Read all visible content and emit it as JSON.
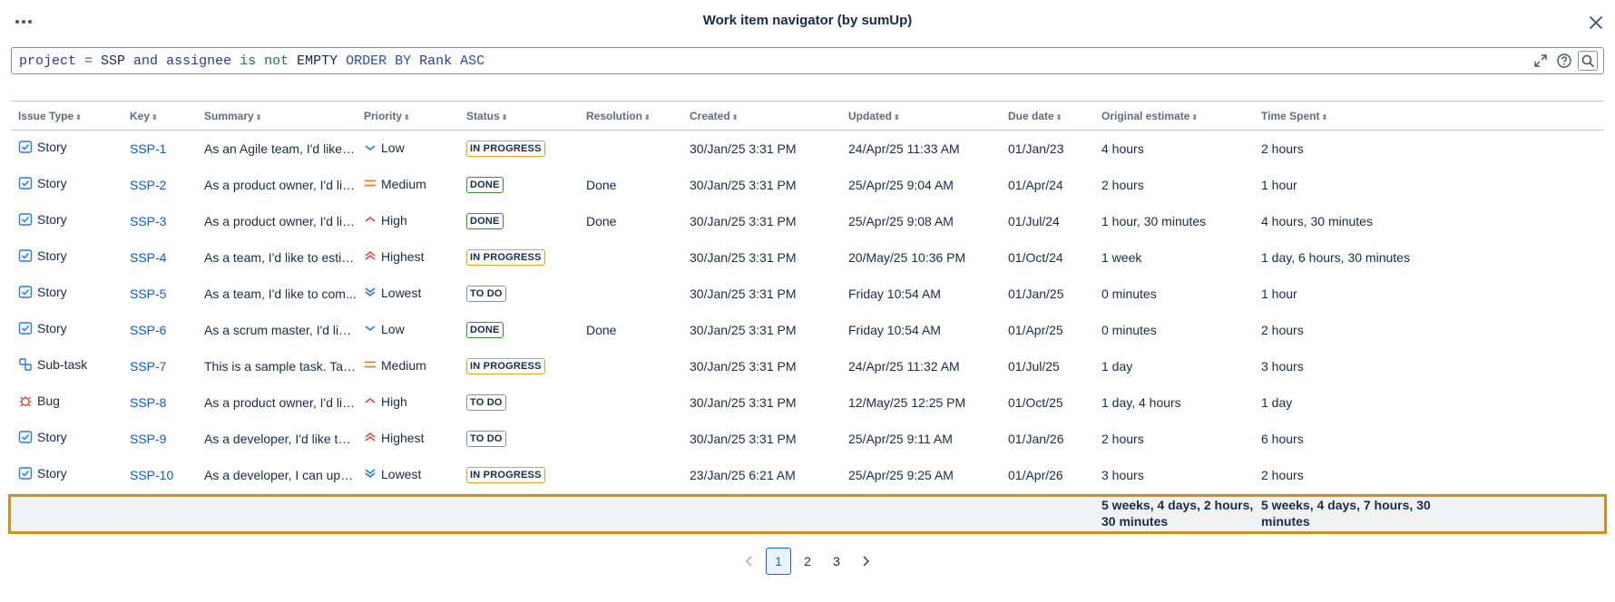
{
  "dialog": {
    "title": "Work item navigator (by sumUp)"
  },
  "query": {
    "tokens": [
      {
        "t": "project",
        "c": "q-kw"
      },
      {
        "t": " = ",
        "c": "q-op"
      },
      {
        "t": "SSP",
        "c": "q-ent"
      },
      {
        "t": " and ",
        "c": "q-kw"
      },
      {
        "t": "assignee",
        "c": "q-kw"
      },
      {
        "t": " is not ",
        "c": "q-op"
      },
      {
        "t": "EMPTY",
        "c": "q-ent"
      },
      {
        "t": " ORDER BY ",
        "c": "q-key"
      },
      {
        "t": "Rank",
        "c": "q-kw"
      },
      {
        "t": " ASC",
        "c": "q-key"
      }
    ]
  },
  "table": {
    "columns": [
      "Issue Type",
      "Key",
      "Summary",
      "Priority",
      "Status",
      "Resolution",
      "Created",
      "Updated",
      "Due date",
      "Original estimate",
      "Time Spent"
    ],
    "rows": [
      {
        "type": "Story",
        "key": "SSP-1",
        "summary": "As an Agile team, I'd like t...",
        "priority": "Low",
        "status": "IN PROGRESS",
        "resolution": "",
        "created": "30/Jan/25 3:31 PM",
        "updated": "24/Apr/25 11:33 AM",
        "due": "01/Jan/23",
        "estimate": "4 hours",
        "spent": "2 hours"
      },
      {
        "type": "Story",
        "key": "SSP-2",
        "summary": "As a product owner, I'd lik...",
        "priority": "Medium",
        "status": "DONE",
        "resolution": "Done",
        "created": "30/Jan/25 3:31 PM",
        "updated": "25/Apr/25 9:04 AM",
        "due": "01/Apr/24",
        "estimate": "2 hours",
        "spent": "1 hour"
      },
      {
        "type": "Story",
        "key": "SSP-3",
        "summary": "As a product owner, I'd lik...",
        "priority": "High",
        "status": "DONE",
        "resolution": "Done",
        "created": "30/Jan/25 3:31 PM",
        "updated": "25/Apr/25 9:08 AM",
        "due": "01/Jul/24",
        "estimate": "1 hour, 30 minutes",
        "spent": "4 hours, 30 minutes"
      },
      {
        "type": "Story",
        "key": "SSP-4",
        "summary": "As a team, I'd like to estim...",
        "priority": "Highest",
        "status": "IN PROGRESS",
        "resolution": "",
        "created": "30/Jan/25 3:31 PM",
        "updated": "20/May/25 10:36 PM",
        "due": "01/Oct/24",
        "estimate": "1 week",
        "spent": "1 day, 6 hours, 30 minutes"
      },
      {
        "type": "Story",
        "key": "SSP-5",
        "summary": "As a team, I'd like to com...",
        "priority": "Lowest",
        "status": "TO DO",
        "resolution": "",
        "created": "30/Jan/25 3:31 PM",
        "updated": "Friday 10:54 AM",
        "due": "01/Jan/25",
        "estimate": "0 minutes",
        "spent": "1 hour"
      },
      {
        "type": "Story",
        "key": "SSP-6",
        "summary": "As a scrum master, I'd like ...",
        "priority": "Low",
        "status": "DONE",
        "resolution": "Done",
        "created": "30/Jan/25 3:31 PM",
        "updated": "Friday 10:54 AM",
        "due": "01/Apr/25",
        "estimate": "0 minutes",
        "spent": "2 hours"
      },
      {
        "type": "Sub-task",
        "key": "SSP-7",
        "summary": "This is a sample task. Task...",
        "priority": "Medium",
        "status": "IN PROGRESS",
        "resolution": "",
        "created": "30/Jan/25 3:31 PM",
        "updated": "24/Apr/25 11:32 AM",
        "due": "01/Jul/25",
        "estimate": "1 day",
        "spent": "3 hours"
      },
      {
        "type": "Bug",
        "key": "SSP-8",
        "summary": "As a product owner, I'd lik...",
        "priority": "High",
        "status": "TO DO",
        "resolution": "",
        "created": "30/Jan/25 3:31 PM",
        "updated": "12/May/25 12:25 PM",
        "due": "01/Oct/25",
        "estimate": "1 day, 4 hours",
        "spent": "1 day"
      },
      {
        "type": "Story",
        "key": "SSP-9",
        "summary": "As a developer, I'd like to ...",
        "priority": "Highest",
        "status": "TO DO",
        "resolution": "",
        "created": "30/Jan/25 3:31 PM",
        "updated": "25/Apr/25 9:11 AM",
        "due": "01/Jan/26",
        "estimate": "2 hours",
        "spent": "6 hours"
      },
      {
        "type": "Story",
        "key": "SSP-10",
        "summary": "As a developer, I can upda...",
        "priority": "Lowest",
        "status": "IN PROGRESS",
        "resolution": "",
        "created": "23/Jan/25 6:21 AM",
        "updated": "25/Apr/25 9:25 AM",
        "due": "01/Apr/26",
        "estimate": "3 hours",
        "spent": "2 hours"
      }
    ],
    "totals": {
      "estimate": "5 weeks, 4 days, 2 hours, 30 minutes",
      "spent": "5 weeks, 4 days, 7 hours, 30 minutes"
    }
  },
  "pagination": {
    "pages": [
      "1",
      "2",
      "3"
    ],
    "current": "1"
  },
  "colors": {
    "link": "#0c5bd3",
    "in_progress_border": "#e8a21a",
    "done_border": "#3f8a3c",
    "todo_border": "#8590a2",
    "totals_highlight": "#d48d1f"
  }
}
